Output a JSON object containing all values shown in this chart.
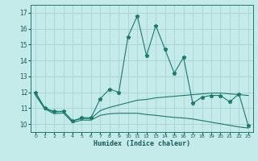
{
  "xlabel": "Humidex (Indice chaleur)",
  "background_color": "#c5eaea",
  "grid_color": "#a8d4d4",
  "line_color": "#1a7a6e",
  "xlim": [
    -0.5,
    23.5
  ],
  "ylim": [
    9.5,
    17.5
  ],
  "x_ticks": [
    0,
    1,
    2,
    3,
    4,
    5,
    6,
    7,
    8,
    9,
    10,
    11,
    12,
    13,
    14,
    15,
    16,
    17,
    18,
    19,
    20,
    21,
    22,
    23
  ],
  "y_ticks": [
    10,
    11,
    12,
    13,
    14,
    15,
    16,
    17
  ],
  "series1_x": [
    0,
    1,
    2,
    3,
    4,
    5,
    6,
    7,
    8,
    9,
    10,
    11,
    12,
    13,
    14,
    15,
    16,
    17,
    18,
    19,
    20,
    21,
    22,
    23
  ],
  "series1_y": [
    12.0,
    11.0,
    10.8,
    10.8,
    10.2,
    10.4,
    10.4,
    11.6,
    12.2,
    12.0,
    15.5,
    16.8,
    14.3,
    16.2,
    14.7,
    13.2,
    14.2,
    11.3,
    11.7,
    11.8,
    11.8,
    11.4,
    11.9,
    9.9
  ],
  "series2_x": [
    0,
    1,
    2,
    3,
    4,
    5,
    6,
    7,
    8,
    9,
    10,
    11,
    12,
    13,
    14,
    15,
    16,
    17,
    18,
    19,
    20,
    21,
    22,
    23
  ],
  "series2_y": [
    11.9,
    11.0,
    10.75,
    10.8,
    10.2,
    10.35,
    10.35,
    10.85,
    11.05,
    11.2,
    11.35,
    11.5,
    11.55,
    11.65,
    11.7,
    11.75,
    11.8,
    11.85,
    11.9,
    11.95,
    11.95,
    11.9,
    11.85,
    11.8
  ],
  "series3_x": [
    0,
    1,
    2,
    3,
    4,
    5,
    6,
    7,
    8,
    9,
    10,
    11,
    12,
    13,
    14,
    15,
    16,
    17,
    18,
    19,
    20,
    21,
    22,
    23
  ],
  "series3_y": [
    11.8,
    10.95,
    10.65,
    10.7,
    10.1,
    10.25,
    10.25,
    10.55,
    10.65,
    10.68,
    10.68,
    10.68,
    10.6,
    10.55,
    10.48,
    10.42,
    10.38,
    10.32,
    10.22,
    10.12,
    10.02,
    9.92,
    9.82,
    9.75
  ]
}
